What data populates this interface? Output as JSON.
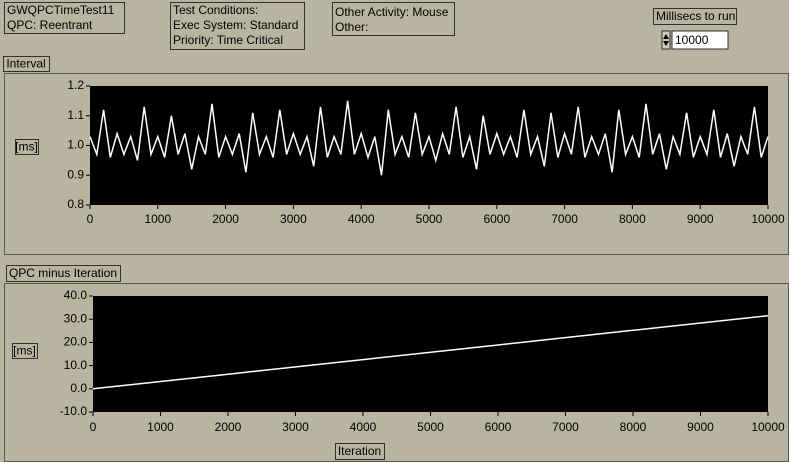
{
  "panel": {
    "title_box": [
      "GWQPCTimeTest11",
      "QPC: Reentrant"
    ],
    "conditions_box": [
      "Test Conditions:",
      "Exec System: Standard",
      "Priority: Time Critical"
    ],
    "activity_box": [
      "Other Activity: Mouse",
      "Other:"
    ],
    "millisecs_label": "Millisecs to run",
    "millisecs_value": 10000
  },
  "chart_data": [
    {
      "type": "line",
      "title": "Interval",
      "ylabel": "[ms]",
      "color": "#ffffff",
      "x": [
        0,
        100,
        200,
        300,
        400,
        500,
        600,
        700,
        800,
        900,
        1000,
        1100,
        1200,
        1300,
        1400,
        1500,
        1600,
        1700,
        1800,
        1900,
        2000,
        2100,
        2200,
        2300,
        2400,
        2500,
        2600,
        2700,
        2800,
        2900,
        3000,
        3100,
        3200,
        3300,
        3400,
        3500,
        3600,
        3700,
        3800,
        3900,
        4000,
        4100,
        4200,
        4300,
        4400,
        4500,
        4600,
        4700,
        4800,
        4900,
        5000,
        5100,
        5200,
        5300,
        5400,
        5500,
        5600,
        5700,
        5800,
        5900,
        6000,
        6100,
        6200,
        6300,
        6400,
        6500,
        6600,
        6700,
        6800,
        6900,
        7000,
        7100,
        7200,
        7300,
        7400,
        7500,
        7600,
        7700,
        7800,
        7900,
        8000,
        8100,
        8200,
        8300,
        8400,
        8500,
        8600,
        8700,
        8800,
        8900,
        9000,
        9100,
        9200,
        9300,
        9400,
        9500,
        9600,
        9700,
        9800,
        9900,
        10000
      ],
      "values": [
        1.03,
        0.97,
        1.12,
        0.96,
        1.04,
        0.97,
        1.03,
        0.95,
        1.13,
        0.97,
        1.03,
        0.96,
        1.1,
        0.97,
        1.04,
        0.92,
        1.03,
        0.97,
        1.14,
        0.96,
        1.03,
        0.97,
        1.04,
        0.91,
        1.11,
        0.97,
        1.03,
        0.96,
        1.12,
        0.97,
        1.04,
        0.97,
        1.03,
        0.93,
        1.13,
        0.96,
        1.03,
        0.97,
        1.15,
        0.97,
        1.04,
        0.96,
        1.03,
        0.9,
        1.12,
        0.97,
        1.03,
        0.96,
        1.11,
        0.97,
        1.03,
        0.95,
        1.04,
        0.97,
        1.13,
        0.96,
        1.03,
        0.92,
        1.1,
        0.97,
        1.04,
        0.97,
        1.03,
        0.96,
        1.12,
        0.97,
        1.03,
        0.93,
        1.11,
        0.96,
        1.04,
        0.97,
        1.13,
        0.96,
        1.03,
        0.97,
        1.04,
        0.91,
        1.12,
        0.97,
        1.03,
        0.96,
        1.14,
        0.97,
        1.04,
        0.92,
        1.03,
        0.97,
        1.11,
        0.96,
        1.03,
        0.97,
        1.12,
        0.96,
        1.04,
        0.93,
        1.03,
        0.97,
        1.13,
        0.96,
        1.03
      ],
      "xlim": [
        0,
        10000
      ],
      "xticks": [
        0,
        1000,
        2000,
        3000,
        4000,
        5000,
        6000,
        7000,
        8000,
        9000,
        10000
      ],
      "ylim": [
        0.8,
        1.2
      ],
      "yticks": [
        1.2,
        1.1,
        {
          "value": 1,
          "label": "1.0"
        },
        0.9,
        0.8
      ]
    },
    {
      "type": "line",
      "title": "QPC minus Iteration",
      "ylabel": "[ms]",
      "xlabel": "Iteration",
      "color": "#ffffff",
      "x": [
        0,
        2000,
        4000,
        6000,
        8000,
        10000
      ],
      "values": [
        0,
        6.3,
        12.6,
        18.9,
        25.2,
        31.5
      ],
      "xlim": [
        0,
        10000
      ],
      "xticks": [
        0,
        1000,
        2000,
        3000,
        4000,
        5000,
        6000,
        7000,
        8000,
        9000,
        10000
      ],
      "ylim": [
        -10,
        40
      ],
      "yticks": [
        {
          "value": 40,
          "label": "40.0"
        },
        {
          "value": 30,
          "label": "30.0"
        },
        {
          "value": 20,
          "label": "20.0"
        },
        {
          "value": 10,
          "label": "10.0"
        },
        {
          "value": 0,
          "label": "0.0"
        },
        {
          "value": -10,
          "label": "-10.0"
        }
      ]
    }
  ]
}
